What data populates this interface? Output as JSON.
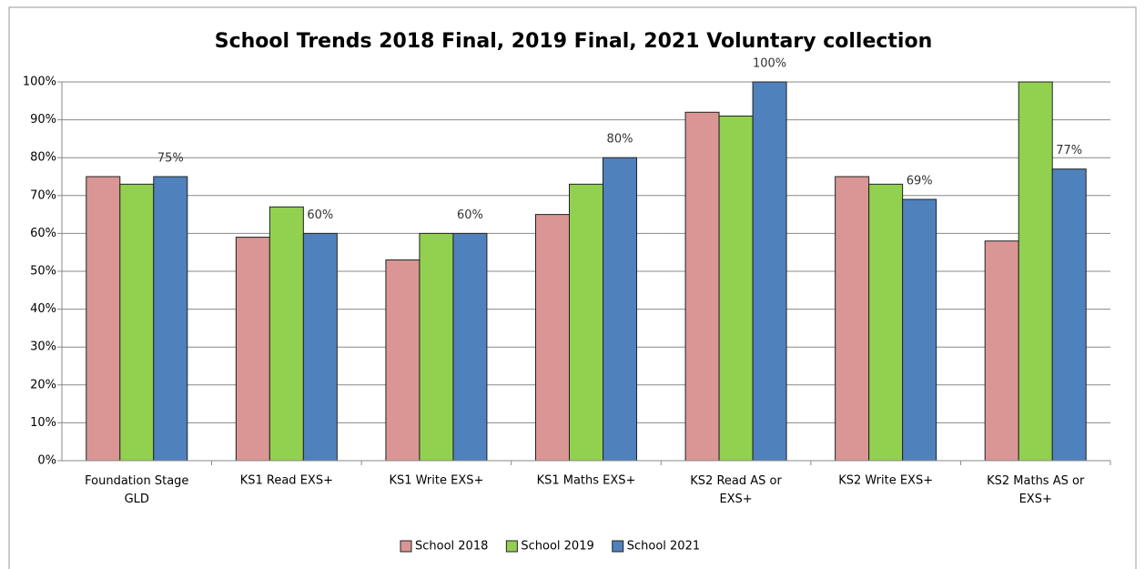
{
  "chart_data": {
    "type": "bar",
    "title": "School Trends 2018 Final, 2019 Final, 2021 Voluntary collection",
    "categories": [
      "Foundation Stage GLD",
      "KS1 Read EXS+",
      "KS1 Write EXS+",
      "KS1 Maths EXS+",
      "KS2 Read  AS or EXS+",
      "KS2 Write EXS+",
      "KS2 Maths AS or EXS+"
    ],
    "series": [
      {
        "name": "School 2018",
        "color": "#d99694",
        "values": [
          75,
          59,
          53,
          65,
          92,
          75,
          58
        ]
      },
      {
        "name": "School 2019",
        "color": "#92d050",
        "values": [
          73,
          67,
          60,
          73,
          91,
          73,
          100
        ]
      },
      {
        "name": "School 2021",
        "color": "#4f81bd",
        "values": [
          75,
          60,
          60,
          80,
          100,
          69,
          77
        ],
        "value_labels": [
          "75%",
          "60%",
          "60%",
          "80%",
          "100%",
          "69%",
          "77%"
        ]
      }
    ],
    "ylim": [
      0,
      100
    ],
    "yticks": [
      {
        "value": 0,
        "label": "0%"
      },
      {
        "value": 10,
        "label": "10%"
      },
      {
        "value": 20,
        "label": "20%"
      },
      {
        "value": 30,
        "label": "30%"
      },
      {
        "value": 40,
        "label": "40%"
      },
      {
        "value": 50,
        "label": "50%"
      },
      {
        "value": 60,
        "label": "60%"
      },
      {
        "value": 70,
        "label": "70%"
      },
      {
        "value": 80,
        "label": "80%"
      },
      {
        "value": 90,
        "label": "90%"
      },
      {
        "value": 100,
        "label": "100%"
      }
    ],
    "grid": true,
    "legend": "bottom"
  }
}
